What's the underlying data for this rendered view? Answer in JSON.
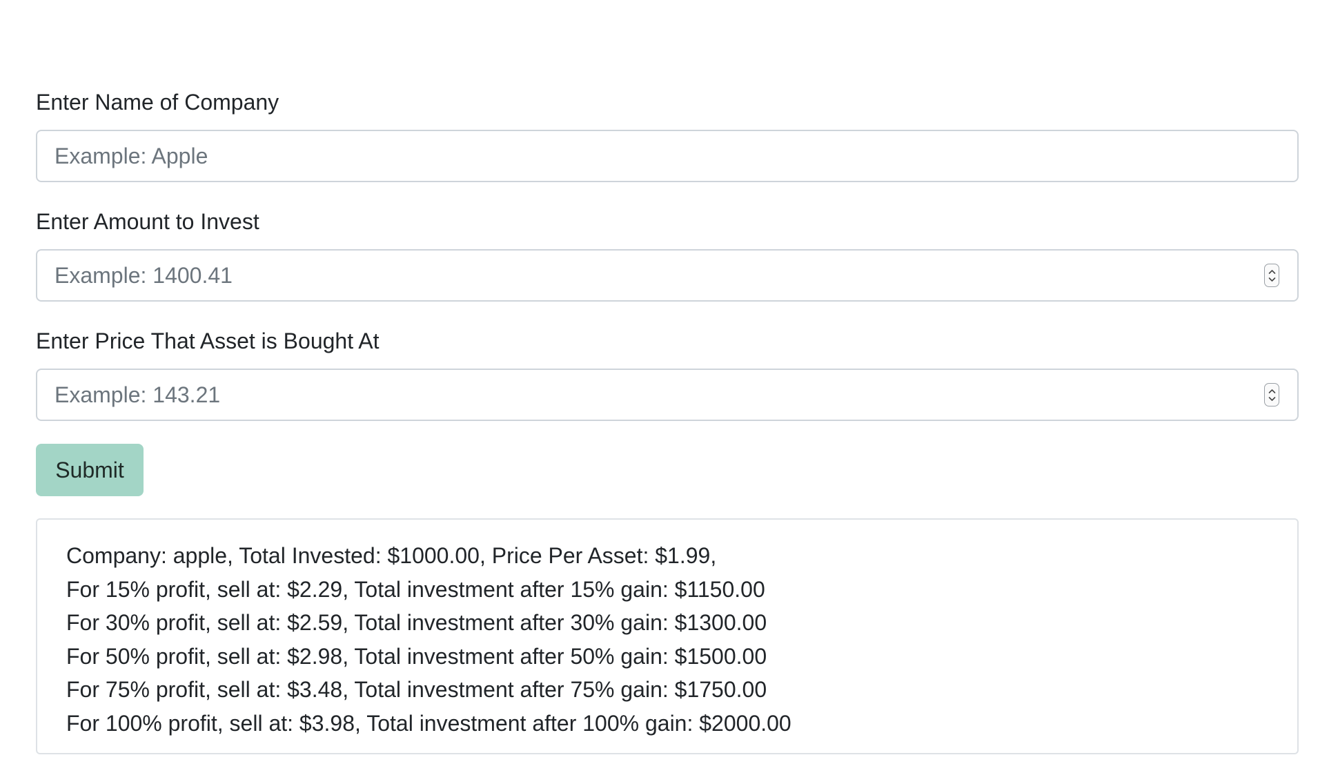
{
  "form": {
    "company_label": "Enter Name of Company",
    "company_placeholder": "Example: Apple",
    "amount_label": "Enter Amount to Invest",
    "amount_placeholder": "Example: 1400.41",
    "price_label": "Enter Price That Asset is Bought At",
    "price_placeholder": "Example: 143.21",
    "submit_label": "Submit"
  },
  "results": {
    "lines": [
      "Company: apple, Total Invested: $1000.00, Price Per Asset: $1.99,",
      "For 15% profit, sell at: $2.29, Total investment after 15% gain: $1150.00",
      "For 30% profit, sell at: $2.59, Total investment after 30% gain: $1300.00",
      "For 50% profit, sell at: $2.98, Total investment after 50% gain: $1500.00",
      "For 75% profit, sell at: $3.48, Total investment after 75% gain: $1750.00",
      "For 100% profit, sell at: $3.98, Total investment after 100% gain: $2000.00"
    ]
  },
  "colors": {
    "submit_background": "#a3d5c6",
    "placeholder_text": "#6c757d",
    "input_border": "#ced4da"
  },
  "icons": {
    "number_spinner": "up-down-chevron-icon"
  }
}
